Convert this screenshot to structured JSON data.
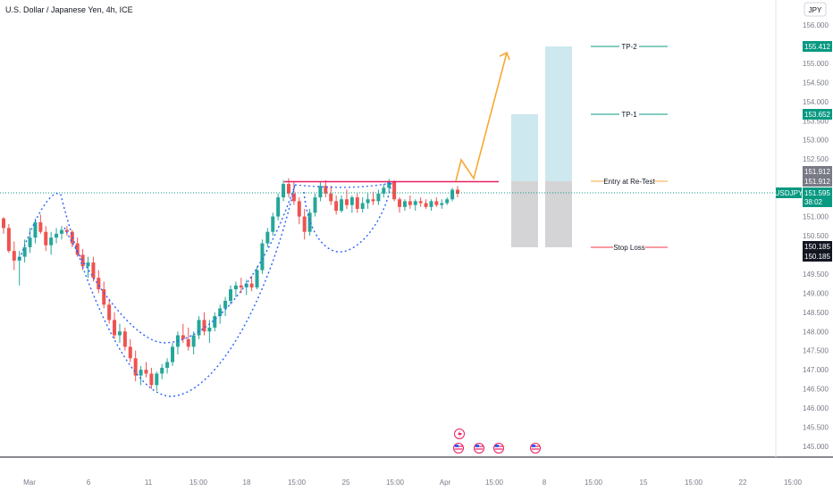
{
  "header": {
    "symbol_title": "U.S. Dollar / Japanese Yen, 4h, ICE"
  },
  "currency_button": "JPY",
  "colors": {
    "up": "#26a69a",
    "down": "#ef5350",
    "pattern": "#2962ff",
    "neckline": "#e91e63",
    "projection": "#f7a935",
    "target_zone": "#cde8ee",
    "stop_zone": "#d4d4d6",
    "tp_line": "#089981",
    "stop_line": "#f23645",
    "entry_line": "#f7a935",
    "price_badge": "#089981",
    "tag_grey": "#787b86",
    "tag_dark": "#131722"
  },
  "annotations": {
    "tp2_label": "TP-2",
    "tp1_label": "TP-1",
    "entry_label": "Entry at Re-Test",
    "stop_label": "Stop Loss"
  },
  "price_tags": {
    "tp2": "155.412",
    "tp1": "153.652",
    "entry_a": "151.912",
    "entry_b": "151.912",
    "current_symbol": "USDJPY",
    "current_price": "151.595",
    "countdown": "38:02",
    "stop_a": "150.185",
    "stop_b": "150.185"
  },
  "chart_data": {
    "type": "candlestick",
    "y_axis": {
      "ticks": [
        "156.000",
        "155.500",
        "155.000",
        "154.500",
        "154.000",
        "153.500",
        "153.000",
        "152.500",
        "152.000",
        "151.500",
        "151.000",
        "150.500",
        "150.000",
        "149.500",
        "149.000",
        "148.500",
        "148.000",
        "147.500",
        "147.000",
        "146.500",
        "146.000",
        "145.500",
        "145.000"
      ],
      "range": [
        144.7,
        156.3
      ]
    },
    "x_axis": {
      "ticks": [
        "Mar",
        "6",
        "11",
        "15:00",
        "18",
        "15:00",
        "25",
        "15:00",
        "Apr",
        "15:00",
        "8",
        "15:00",
        "15",
        "15:00",
        "22",
        "15:00"
      ]
    },
    "levels": {
      "tp2": 155.412,
      "tp1": 153.652,
      "entry": 151.912,
      "stop": 150.185,
      "current": 151.595,
      "neckline": 151.912
    },
    "candles": [
      [
        150.95,
        150.98,
        150.55,
        150.7
      ],
      [
        150.7,
        150.8,
        150.05,
        150.1
      ],
      [
        150.1,
        150.35,
        149.6,
        149.85
      ],
      [
        149.85,
        150.1,
        149.2,
        149.95
      ],
      [
        149.95,
        150.4,
        149.8,
        150.2
      ],
      [
        150.2,
        150.7,
        150.05,
        150.45
      ],
      [
        150.45,
        150.95,
        150.3,
        150.85
      ],
      [
        150.85,
        151.05,
        150.55,
        150.6
      ],
      [
        150.6,
        150.75,
        150.1,
        150.25
      ],
      [
        150.25,
        150.6,
        150.0,
        150.45
      ],
      [
        150.45,
        150.7,
        150.3,
        150.55
      ],
      [
        150.55,
        150.75,
        150.4,
        150.65
      ],
      [
        150.65,
        150.75,
        150.5,
        150.6
      ],
      [
        150.6,
        150.65,
        150.2,
        150.3
      ],
      [
        150.3,
        150.45,
        149.95,
        150.0
      ],
      [
        150.0,
        150.15,
        149.6,
        149.7
      ],
      [
        149.7,
        149.95,
        149.4,
        149.8
      ],
      [
        149.8,
        149.95,
        149.3,
        149.4
      ],
      [
        149.4,
        149.6,
        149.0,
        149.1
      ],
      [
        149.1,
        149.3,
        148.6,
        148.7
      ],
      [
        148.7,
        148.85,
        148.2,
        148.3
      ],
      [
        148.3,
        148.5,
        147.8,
        147.9
      ],
      [
        147.9,
        148.2,
        147.7,
        148.0
      ],
      [
        148.0,
        148.1,
        147.5,
        147.6
      ],
      [
        147.6,
        147.8,
        147.2,
        147.3
      ],
      [
        147.3,
        147.5,
        146.7,
        146.85
      ],
      [
        146.85,
        147.1,
        146.6,
        147.0
      ],
      [
        147.0,
        147.2,
        146.8,
        146.9
      ],
      [
        146.9,
        147.05,
        146.5,
        146.6
      ],
      [
        146.6,
        146.95,
        146.45,
        146.9
      ],
      [
        146.9,
        147.15,
        146.75,
        147.05
      ],
      [
        147.05,
        147.3,
        146.9,
        147.2
      ],
      [
        147.2,
        147.7,
        147.1,
        147.6
      ],
      [
        147.6,
        148.0,
        147.4,
        147.9
      ],
      [
        147.9,
        148.2,
        147.7,
        147.8
      ],
      [
        147.8,
        148.1,
        147.5,
        147.6
      ],
      [
        147.6,
        148.0,
        147.4,
        147.9
      ],
      [
        147.9,
        148.4,
        147.8,
        148.3
      ],
      [
        148.3,
        148.5,
        147.9,
        148.0
      ],
      [
        148.0,
        148.3,
        147.7,
        148.1
      ],
      [
        148.1,
        148.5,
        148.0,
        148.4
      ],
      [
        148.4,
        148.7,
        148.2,
        148.6
      ],
      [
        148.6,
        148.9,
        148.4,
        148.8
      ],
      [
        148.8,
        149.2,
        148.7,
        149.1
      ],
      [
        149.1,
        149.3,
        148.9,
        149.2
      ],
      [
        149.2,
        149.4,
        149.0,
        149.15
      ],
      [
        149.15,
        149.35,
        148.95,
        149.25
      ],
      [
        149.25,
        149.45,
        149.05,
        149.15
      ],
      [
        149.15,
        149.7,
        149.1,
        149.6
      ],
      [
        149.6,
        150.4,
        149.5,
        150.3
      ],
      [
        150.3,
        150.7,
        150.2,
        150.6
      ],
      [
        150.6,
        151.1,
        150.5,
        151.0
      ],
      [
        151.0,
        151.6,
        150.9,
        151.5
      ],
      [
        151.5,
        151.95,
        151.4,
        151.85
      ],
      [
        151.85,
        152.0,
        151.5,
        151.6
      ],
      [
        151.6,
        151.9,
        151.3,
        151.4
      ],
      [
        151.4,
        151.5,
        150.8,
        151.0
      ],
      [
        151.0,
        151.2,
        150.4,
        150.6
      ],
      [
        150.6,
        151.2,
        150.5,
        151.1
      ],
      [
        151.1,
        151.6,
        151.0,
        151.5
      ],
      [
        151.5,
        151.9,
        151.4,
        151.8
      ],
      [
        151.8,
        151.95,
        151.5,
        151.6
      ],
      [
        151.6,
        151.8,
        151.3,
        151.4
      ],
      [
        151.4,
        151.55,
        151.05,
        151.15
      ],
      [
        151.15,
        151.55,
        151.1,
        151.45
      ],
      [
        151.45,
        151.7,
        151.2,
        151.3
      ],
      [
        151.3,
        151.55,
        151.1,
        151.5
      ],
      [
        151.5,
        151.6,
        151.1,
        151.2
      ],
      [
        151.2,
        151.5,
        151.1,
        151.35
      ],
      [
        151.35,
        151.6,
        151.2,
        151.45
      ],
      [
        151.45,
        151.65,
        151.3,
        151.4
      ],
      [
        151.4,
        151.7,
        151.3,
        151.6
      ],
      [
        151.6,
        151.85,
        151.5,
        151.75
      ],
      [
        151.75,
        151.98,
        151.6,
        151.9
      ],
      [
        151.9,
        151.95,
        151.4,
        151.45
      ],
      [
        151.45,
        151.5,
        151.1,
        151.25
      ],
      [
        151.25,
        151.45,
        151.15,
        151.4
      ],
      [
        151.4,
        151.55,
        151.2,
        151.3
      ],
      [
        151.3,
        151.45,
        151.15,
        151.4
      ],
      [
        151.4,
        151.5,
        151.25,
        151.35
      ],
      [
        151.35,
        151.45,
        151.2,
        151.25
      ],
      [
        151.25,
        151.45,
        151.15,
        151.4
      ],
      [
        151.4,
        151.5,
        151.25,
        151.3
      ],
      [
        151.3,
        151.45,
        151.2,
        151.35
      ],
      [
        151.35,
        151.5,
        151.3,
        151.45
      ],
      [
        151.45,
        151.75,
        151.4,
        151.7
      ],
      [
        151.7,
        151.8,
        151.5,
        151.595
      ]
    ]
  }
}
